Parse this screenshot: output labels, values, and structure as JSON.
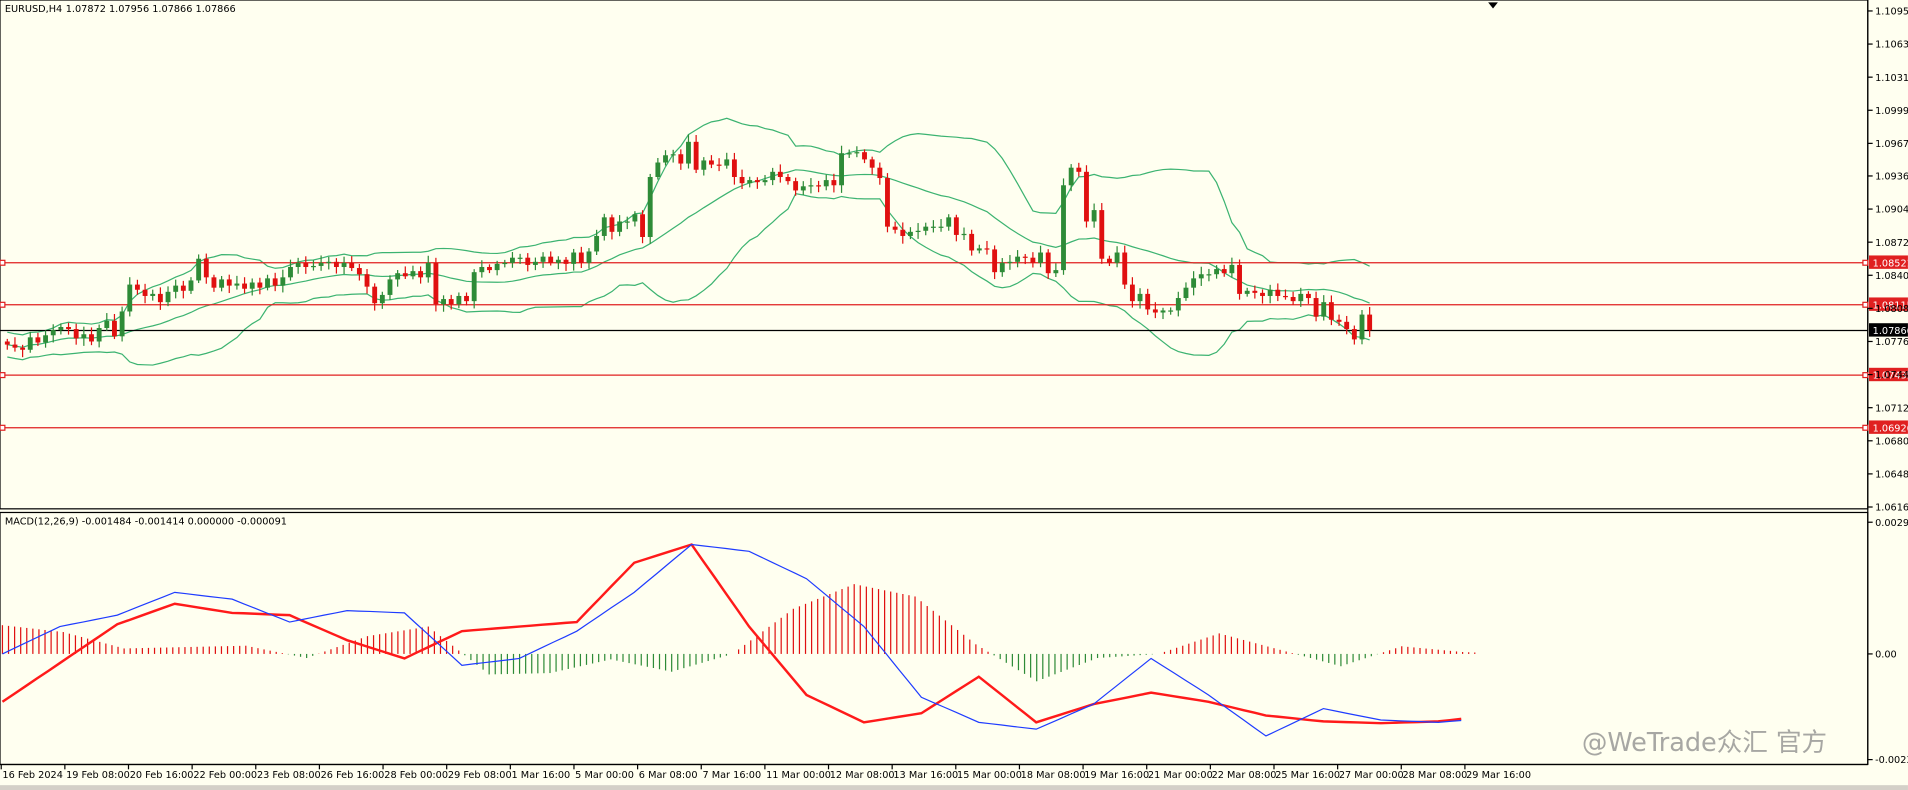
{
  "header": {
    "symbol": "EURUSD,H4",
    "ohlc": "1.07872 1.07956 1.07866 1.07866"
  },
  "macd_header": {
    "label": "MACD(12,26,9) -0.001484 -0.001414 0.000000 -0.000091"
  },
  "price_axis": {
    "ticks": [
      "1.10955",
      "1.10635",
      "1.10315",
      "1.09995",
      "1.09675",
      "1.09360",
      "1.09040",
      "1.08720",
      "1.08400",
      "1.08080",
      "1.07760",
      "1.07440",
      "1.07120",
      "1.06800",
      "1.06480",
      "1.06160"
    ],
    "current_price": "1.07866",
    "levels": [
      "1.08521",
      "1.08115",
      "1.07435",
      "1.06926"
    ]
  },
  "macd_axis": {
    "ticks": [
      "0.002941",
      "0.00",
      "-0.002317"
    ]
  },
  "time_axis": {
    "labels": [
      "16 Feb 2024",
      "19 Feb 08:00",
      "20 Feb 16:00",
      "22 Feb 00:00",
      "23 Feb 08:00",
      "26 Feb 16:00",
      "28 Feb 00:00",
      "29 Feb 08:00",
      "1 Mar 16:00",
      "5 Mar 00:00",
      "6 Mar 08:00",
      "7 Mar 16:00",
      "11 Mar 00:00",
      "12 Mar 08:00",
      "13 Mar 16:00",
      "15 Mar 00:00",
      "18 Mar 08:00",
      "19 Mar 16:00",
      "21 Mar 00:00",
      "22 Mar 08:00",
      "25 Mar 16:00",
      "27 Mar 00:00",
      "28 Mar 08:00",
      "29 Mar 16:00"
    ]
  },
  "watermark": "@WeTrade众汇 官方",
  "colors": {
    "background": "#fffff0",
    "bull": "#2e8b37",
    "bear": "#e01010",
    "bands": "#3cb371",
    "level_line": "#e02020",
    "macd_line": "#1f3cff",
    "signal_line": "#ff1a1a"
  },
  "chart_data": [
    {
      "type": "candlestick",
      "title": "EURUSD,H4",
      "ylim": [
        1.0616,
        1.1101
      ],
      "closes": [
        1.0773,
        1.077,
        1.0768,
        1.078,
        1.0775,
        1.0782,
        1.0787,
        1.079,
        1.0788,
        1.0779,
        1.0783,
        1.0776,
        1.0789,
        1.0796,
        1.0781,
        1.0805,
        1.0831,
        1.0826,
        1.082,
        1.0822,
        1.0814,
        1.0824,
        1.083,
        1.0825,
        1.0835,
        1.0856,
        1.0838,
        1.0828,
        1.0836,
        1.083,
        1.0832,
        1.0827,
        1.0833,
        1.0828,
        1.0837,
        1.083,
        1.0838,
        1.0848,
        1.0852,
        1.0848,
        1.0849,
        1.0852,
        1.0853,
        1.0848,
        1.0852,
        1.0847,
        1.0841,
        1.0829,
        1.0813,
        1.0821,
        1.0836,
        1.0842,
        1.0839,
        1.0844,
        1.0838,
        1.0852,
        1.0812,
        1.0817,
        1.0812,
        1.082,
        1.0815,
        1.0843,
        1.0848,
        1.0845,
        1.0851,
        1.0852,
        1.0857,
        1.0857,
        1.085,
        1.0853,
        1.0858,
        1.0852,
        1.0855,
        1.0851,
        1.0862,
        1.0852,
        1.0863,
        1.0878,
        1.0896,
        1.0882,
        1.0892,
        1.0892,
        1.0899,
        1.0877,
        1.0935,
        1.0949,
        1.0956,
        1.0957,
        1.0948,
        1.0969,
        1.0942,
        1.0951,
        1.0947,
        1.0946,
        1.0952,
        1.0935,
        1.0929,
        1.0932,
        1.093,
        1.0932,
        1.094,
        1.0935,
        1.0931,
        1.0922,
        1.0926,
        1.0927,
        1.0926,
        1.0932,
        1.0927,
        1.0958,
        1.0958,
        1.0959,
        1.0952,
        1.0944,
        1.0934,
        1.0887,
        1.0884,
        1.0878,
        1.0882,
        1.0883,
        1.0887,
        1.0887,
        1.0887,
        1.0896,
        1.0879,
        1.088,
        1.0864,
        1.0866,
        1.0865,
        1.0843,
        1.0852,
        1.0853,
        1.0858,
        1.0857,
        1.0852,
        1.0862,
        1.0842,
        1.0845,
        1.0927,
        1.0944,
        1.094,
        1.0892,
        1.0903,
        1.0856,
        1.0852,
        1.0862,
        1.0831,
        1.0815,
        1.0822,
        1.0807,
        1.0804,
        1.0806,
        1.0806,
        1.0818,
        1.0828,
        1.0837,
        1.0841,
        1.0841,
        1.0846,
        1.0842,
        1.085,
        1.0822,
        1.0825,
        1.0823,
        1.082,
        1.0826,
        1.082,
        1.0819,
        1.0815,
        1.0822,
        1.0818,
        1.08,
        1.0814,
        1.0797,
        1.0795,
        1.0788,
        1.0778,
        1.0802,
        1.0787
      ]
    },
    {
      "type": "line",
      "title": "MACD(12,26,9)",
      "ylim": [
        -0.002317,
        0.002941
      ],
      "series": [
        {
          "name": "MACD main",
          "points": [
            [
              0,
              0.0
            ],
            [
              10,
              0.0006
            ],
            [
              20,
              0.00085
            ],
            [
              30,
              0.00135
            ],
            [
              40,
              0.0012
            ],
            [
              50,
              0.0007
            ],
            [
              60,
              0.00095
            ],
            [
              70,
              0.0009
            ],
            [
              80,
              -0.00025
            ],
            [
              90,
              -0.0001
            ],
            [
              100,
              0.0005
            ],
            [
              110,
              0.00135
            ],
            [
              120,
              0.0024
            ],
            [
              130,
              0.00225
            ],
            [
              140,
              0.00165
            ],
            [
              150,
              0.0006
            ],
            [
              160,
              -0.00095
            ],
            [
              170,
              -0.0015
            ],
            [
              180,
              -0.00165
            ],
            [
              190,
              -0.0011
            ],
            [
              200,
              -0.0001
            ],
            [
              210,
              -0.0009
            ],
            [
              220,
              -0.0018
            ],
            [
              230,
              -0.0012
            ],
            [
              240,
              -0.00145
            ],
            [
              250,
              -0.0015
            ],
            [
              255,
              -0.00145
            ]
          ]
        },
        {
          "name": "Signal",
          "points": [
            [
              0,
              -0.00105
            ],
            [
              20,
              0.00065
            ],
            [
              30,
              0.0011
            ],
            [
              40,
              0.0009
            ],
            [
              50,
              0.00085
            ],
            [
              60,
              0.0003
            ],
            [
              70,
              -0.0001
            ],
            [
              80,
              0.0005
            ],
            [
              90,
              0.0006
            ],
            [
              100,
              0.0007
            ],
            [
              110,
              0.002
            ],
            [
              120,
              0.0024
            ],
            [
              130,
              0.0006
            ],
            [
              140,
              -0.0009
            ],
            [
              150,
              -0.0015
            ],
            [
              160,
              -0.0013
            ],
            [
              170,
              -0.0005
            ],
            [
              180,
              -0.0015
            ],
            [
              190,
              -0.0011
            ],
            [
              200,
              -0.00085
            ],
            [
              210,
              -0.00105
            ],
            [
              220,
              -0.00135
            ],
            [
              230,
              -0.00148
            ],
            [
              240,
              -0.00152
            ],
            [
              250,
              -0.00148
            ],
            [
              255,
              -0.00141
            ]
          ]
        }
      ]
    }
  ]
}
